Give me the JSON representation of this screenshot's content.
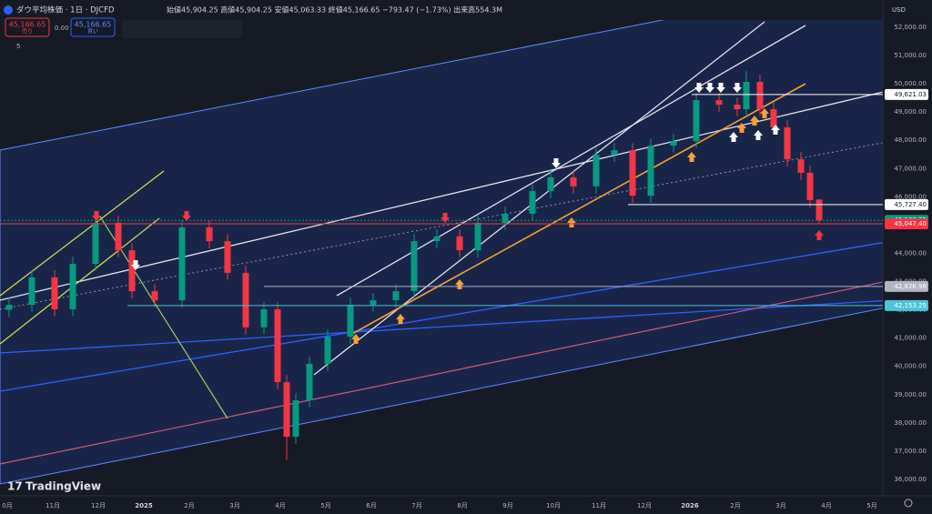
{
  "header": {
    "symbol": "ダウ平均株価 · 1日 · DJCFD",
    "ohlc": "始値45,904.25 高値45,904.25 安値45,063.33 終値45,166.65 −793.47 (−1.73%) 出来高554.3M",
    "sell_price": "45,166.65",
    "sell": "売り",
    "spread": "0.00",
    "buy_price": "45,166.65",
    "buy": "買い",
    "indicators": "5",
    "currency": "USD",
    "brand": "TradingView"
  },
  "chart_data": {
    "type": "candlestick",
    "x": [
      0.04,
      0.54,
      1.04,
      1.44,
      1.94,
      2.44,
      2.74,
      3.24,
      3.84,
      4.44,
      4.84,
      5.24,
      5.64,
      5.94,
      6.14,
      6.34,
      6.64,
      7.04,
      7.54,
      8.04,
      8.54,
      8.94,
      9.44,
      9.94,
      10.34,
      10.94,
      11.54,
      11.94,
      12.44,
      12.94,
      13.34,
      13.74,
      14.14,
      14.64,
      15.14,
      15.64,
      16.04,
      16.24,
      16.54,
      16.84,
      17.14,
      17.44,
      17.64,
      17.84
    ],
    "open": [
      42000,
      42180,
      43150,
      42020,
      43630,
      45080,
      44110,
      42660,
      42340,
      44920,
      44430,
      43310,
      41380,
      42020,
      39440,
      37510,
      38800,
      40090,
      41050,
      42180,
      42340,
      42660,
      44430,
      44600,
      44110,
      45080,
      45400,
      46200,
      46690,
      46370,
      47490,
      47650,
      46040,
      47810,
      47970,
      49420,
      49260,
      49100,
      50070,
      49100,
      48460,
      47330,
      46850,
      45904.25
    ],
    "high": [
      42430,
      43400,
      43400,
      43880,
      45330,
      45330,
      44360,
      42910,
      45170,
      45170,
      44680,
      43560,
      42270,
      42270,
      39690,
      39050,
      40340,
      41300,
      42430,
      42590,
      42910,
      44680,
      44850,
      44850,
      45330,
      45650,
      46450,
      46940,
      46940,
      47740,
      47900,
      47900,
      48060,
      48220,
      49670,
      49670,
      49510,
      50450,
      50320,
      49350,
      48710,
      47580,
      47100,
      45904.25
    ],
    "low": [
      41750,
      41930,
      41770,
      41770,
      43380,
      43860,
      42410,
      42090,
      42090,
      44180,
      43060,
      41130,
      41130,
      39190,
      36700,
      37260,
      38550,
      39840,
      40800,
      41930,
      42090,
      42410,
      44180,
      43860,
      43860,
      44830,
      45150,
      45950,
      46120,
      46120,
      47240,
      45790,
      45790,
      47560,
      47720,
      49010,
      48850,
      48850,
      48850,
      48210,
      47080,
      46600,
      45630,
      45063.33
    ],
    "close": [
      42180,
      43150,
      42020,
      43630,
      45080,
      44110,
      42660,
      42340,
      44920,
      44430,
      43310,
      41380,
      42020,
      39440,
      37510,
      38800,
      40090,
      41050,
      42180,
      42340,
      42660,
      44430,
      44600,
      44110,
      45080,
      45400,
      46200,
      46690,
      46370,
      47490,
      47650,
      46040,
      47810,
      47970,
      49420,
      49260,
      49100,
      50070,
      49100,
      48460,
      47330,
      46850,
      45880,
      45166.65
    ],
    "up_color": "#089981",
    "down_color": "#f23645",
    "xlim": [
      0,
      19.24
    ],
    "xticks": [
      {
        "value": 0,
        "label": "0月"
      },
      {
        "value": 1,
        "label": "11月"
      },
      {
        "value": 2,
        "label": "12月"
      },
      {
        "value": 3,
        "label": "2025"
      },
      {
        "value": 4,
        "label": "2月"
      },
      {
        "value": 5,
        "label": "3月"
      },
      {
        "value": 6,
        "label": "4月"
      },
      {
        "value": 7,
        "label": "5月"
      },
      {
        "value": 8,
        "label": "6月"
      },
      {
        "value": 9,
        "label": "7月"
      },
      {
        "value": 10,
        "label": "8月"
      },
      {
        "value": 11,
        "label": "9月"
      },
      {
        "value": 12,
        "label": "10月"
      },
      {
        "value": 13,
        "label": "11月"
      },
      {
        "value": 14,
        "label": "12月"
      },
      {
        "value": 15,
        "label": "2026"
      },
      {
        "value": 16,
        "label": "2月"
      },
      {
        "value": 17,
        "label": "3月"
      },
      {
        "value": 18,
        "label": "4月"
      },
      {
        "value": 19,
        "label": "5月"
      }
    ],
    "ylim": [
      35700,
      52550
    ],
    "yticks": [
      {
        "value": 36000,
        "label": "36,000.00"
      },
      {
        "value": 37000,
        "label": "37,000.00"
      },
      {
        "value": 38000,
        "label": "38,000.00"
      },
      {
        "value": 39000,
        "label": "39,000.00"
      },
      {
        "value": 40000,
        "label": "40,000.00"
      },
      {
        "value": 41000,
        "label": "41,000.00"
      },
      {
        "value": 42000,
        "label": "42,000.00"
      },
      {
        "value": 43000,
        "label": "43,000.00"
      },
      {
        "value": 44000,
        "label": "44,000.00"
      },
      {
        "value": 45000,
        "label": "45,000.00"
      },
      {
        "value": 46000,
        "label": "46,000.00"
      },
      {
        "value": 47000,
        "label": "47,000.00"
      },
      {
        "value": 48000,
        "label": "48,000.00"
      },
      {
        "value": 49000,
        "label": "49,000.00"
      },
      {
        "value": 50000,
        "label": "50,000.00"
      },
      {
        "value": 51000,
        "label": "51,000.00"
      },
      {
        "value": 52000,
        "label": "52,000.00"
      }
    ],
    "price_lines": [
      {
        "value": 49621.03,
        "label": "49,621.03",
        "color": "#ffffff"
      },
      {
        "value": 45727.4,
        "label": "45,727.40",
        "color": "#ffffff"
      },
      {
        "value": 45166.65,
        "label": "45,166.65",
        "color": "#089981"
      },
      {
        "value": 45047.4,
        "label": "45,047.40",
        "color": "#f23645"
      },
      {
        "value": 42826.98,
        "label": "42,826.98",
        "color": "#b2b5be"
      },
      {
        "value": 42153.25,
        "label": "42,153.25",
        "color": "#4fc3d9"
      }
    ]
  }
}
